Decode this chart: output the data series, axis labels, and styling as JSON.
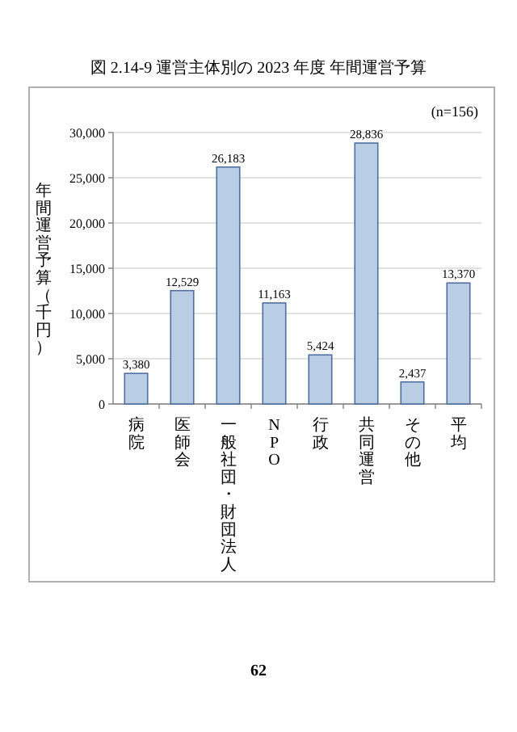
{
  "chart_data": {
    "type": "bar",
    "title": "図 2.14-9 運営主体別の 2023 年度 年間運営予算",
    "ylabel": "年間運営予算（千円）",
    "categories": [
      "病院",
      "医師会",
      "一般社団・財団法人",
      "NPO",
      "行政",
      "共同運営",
      "その他",
      "平均"
    ],
    "values": [
      3380,
      12529,
      26183,
      11163,
      5424,
      28836,
      2437,
      13370
    ],
    "value_labels": [
      "3,380",
      "12,529",
      "26,183",
      "11,163",
      "5,424",
      "28,836",
      "2,437",
      "13,370"
    ],
    "color": "#b9cde5",
    "ylim": [
      0,
      30000
    ],
    "yticks": [
      0,
      {
        "value": 5000,
        "label": "5,000"
      },
      {
        "value": 10000,
        "label": "10,000"
      },
      {
        "value": 15000,
        "label": "15,000"
      },
      {
        "value": 20000,
        "label": "20,000"
      },
      {
        "value": 25000,
        "label": "25,000"
      },
      {
        "value": 30000,
        "label": "30,000"
      }
    ],
    "grid": "y",
    "annotations": [
      "(n=156)",
      "62"
    ]
  }
}
